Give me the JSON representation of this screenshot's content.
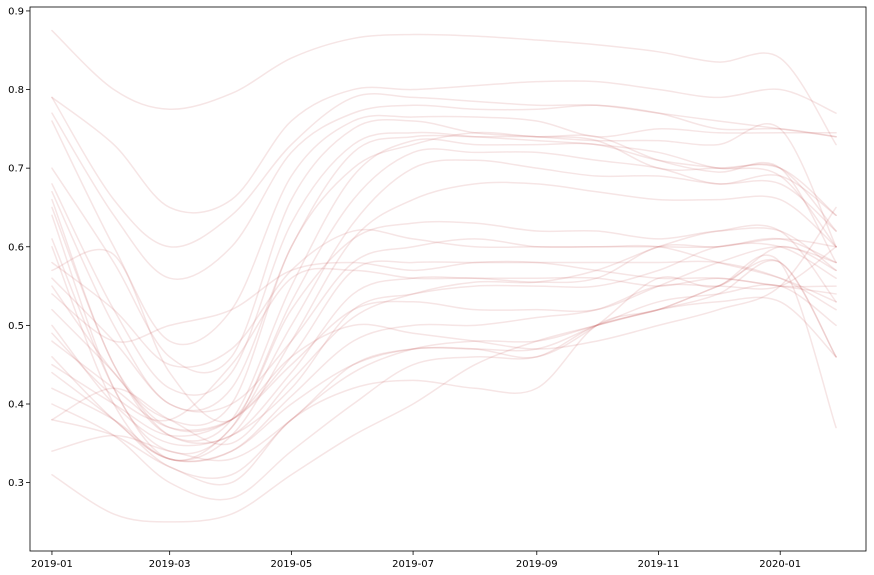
{
  "chart_data": {
    "type": "line",
    "title": "",
    "xlabel": "",
    "ylabel": "",
    "xlim": [
      "2018-12-21",
      "2020-02-13"
    ],
    "ylim": [
      0.213,
      0.905
    ],
    "grid": false,
    "legend": "none",
    "line_color": "#c44e52",
    "line_opacity": 0.15,
    "x_ticks": [
      "2019-01",
      "2019-03",
      "2019-05",
      "2019-07",
      "2019-09",
      "2019-11",
      "2020-01"
    ],
    "y_ticks": [
      "0.3",
      "0.4",
      "0.5",
      "0.6",
      "0.7",
      "0.8",
      "0.9"
    ],
    "x_dates": [
      "2019-01-01",
      "2019-02-01",
      "2019-03-01",
      "2019-04-01",
      "2019-05-01",
      "2019-06-01",
      "2019-07-01",
      "2019-08-01",
      "2019-09-01",
      "2019-10-01",
      "2019-11-01",
      "2019-12-01",
      "2020-01-01",
      "2020-01-29"
    ],
    "series": [
      {
        "values": [
          0.875,
          0.8,
          0.775,
          0.795,
          0.84,
          0.865,
          0.87,
          0.868,
          0.863,
          0.857,
          0.848,
          0.835,
          0.84,
          0.73
        ]
      },
      {
        "values": [
          0.79,
          0.73,
          0.65,
          0.66,
          0.76,
          0.8,
          0.8,
          0.805,
          0.81,
          0.81,
          0.8,
          0.79,
          0.8,
          0.77
        ]
      },
      {
        "values": [
          0.79,
          0.66,
          0.6,
          0.64,
          0.73,
          0.79,
          0.79,
          0.785,
          0.78,
          0.78,
          0.77,
          0.76,
          0.75,
          0.74
        ]
      },
      {
        "values": [
          0.77,
          0.64,
          0.56,
          0.6,
          0.72,
          0.77,
          0.78,
          0.775,
          0.775,
          0.78,
          0.77,
          0.75,
          0.75,
          0.74
        ]
      },
      {
        "values": [
          0.76,
          0.6,
          0.48,
          0.52,
          0.69,
          0.76,
          0.765,
          0.765,
          0.76,
          0.74,
          0.75,
          0.745,
          0.745,
          0.745
        ]
      },
      {
        "values": [
          0.7,
          0.58,
          0.46,
          0.46,
          0.66,
          0.75,
          0.76,
          0.745,
          0.74,
          0.735,
          0.735,
          0.73,
          0.75,
          0.6
        ]
      },
      {
        "values": [
          0.68,
          0.52,
          0.42,
          0.44,
          0.63,
          0.73,
          0.745,
          0.74,
          0.735,
          0.73,
          0.72,
          0.7,
          0.7,
          0.62
        ]
      },
      {
        "values": [
          0.67,
          0.5,
          0.4,
          0.42,
          0.6,
          0.72,
          0.74,
          0.74,
          0.74,
          0.735,
          0.7,
          0.7,
          0.7,
          0.64
        ]
      },
      {
        "values": [
          0.66,
          0.45,
          0.38,
          0.4,
          0.6,
          0.7,
          0.73,
          0.745,
          0.74,
          0.74,
          0.71,
          0.695,
          0.7,
          0.58
        ]
      },
      {
        "values": [
          0.65,
          0.45,
          0.36,
          0.38,
          0.55,
          0.69,
          0.735,
          0.73,
          0.73,
          0.73,
          0.71,
          0.7,
          0.69,
          0.6
        ]
      },
      {
        "values": [
          0.64,
          0.42,
          0.34,
          0.37,
          0.53,
          0.66,
          0.72,
          0.72,
          0.72,
          0.71,
          0.7,
          0.68,
          0.69,
          0.64
        ]
      },
      {
        "values": [
          0.61,
          0.42,
          0.33,
          0.37,
          0.5,
          0.63,
          0.7,
          0.71,
          0.7,
          0.69,
          0.69,
          0.68,
          0.68,
          0.62
        ]
      },
      {
        "values": [
          0.6,
          0.4,
          0.33,
          0.36,
          0.48,
          0.61,
          0.66,
          0.68,
          0.68,
          0.67,
          0.66,
          0.66,
          0.66,
          0.6
        ]
      },
      {
        "values": [
          0.58,
          0.52,
          0.45,
          0.47,
          0.57,
          0.62,
          0.61,
          0.6,
          0.6,
          0.6,
          0.6,
          0.6,
          0.61,
          0.58
        ]
      },
      {
        "values": [
          0.57,
          0.59,
          0.44,
          0.38,
          0.52,
          0.61,
          0.63,
          0.63,
          0.62,
          0.62,
          0.61,
          0.62,
          0.62,
          0.57
        ]
      },
      {
        "values": [
          0.56,
          0.48,
          0.4,
          0.4,
          0.48,
          0.58,
          0.6,
          0.61,
          0.6,
          0.6,
          0.6,
          0.58,
          0.56,
          0.53
        ]
      },
      {
        "values": [
          0.55,
          0.44,
          0.37,
          0.38,
          0.46,
          0.57,
          0.58,
          0.58,
          0.58,
          0.58,
          0.58,
          0.58,
          0.56,
          0.52
        ]
      },
      {
        "values": [
          0.54,
          0.48,
          0.5,
          0.52,
          0.57,
          0.58,
          0.57,
          0.58,
          0.58,
          0.57,
          0.56,
          0.56,
          0.55,
          0.54
        ]
      },
      {
        "values": [
          0.52,
          0.44,
          0.36,
          0.36,
          0.44,
          0.54,
          0.56,
          0.56,
          0.56,
          0.56,
          0.55,
          0.56,
          0.55,
          0.55
        ]
      },
      {
        "values": [
          0.5,
          0.4,
          0.35,
          0.36,
          0.42,
          0.52,
          0.54,
          0.55,
          0.55,
          0.55,
          0.57,
          0.6,
          0.6,
          0.56
        ]
      },
      {
        "values": [
          0.49,
          0.41,
          0.38,
          0.45,
          0.56,
          0.57,
          0.56,
          0.56,
          0.555,
          0.56,
          0.6,
          0.6,
          0.61,
          0.6
        ]
      },
      {
        "values": [
          0.48,
          0.42,
          0.37,
          0.38,
          0.45,
          0.52,
          0.53,
          0.52,
          0.52,
          0.52,
          0.55,
          0.58,
          0.6,
          0.58
        ]
      },
      {
        "values": [
          0.46,
          0.38,
          0.33,
          0.34,
          0.41,
          0.48,
          0.5,
          0.5,
          0.51,
          0.52,
          0.55,
          0.55,
          0.55,
          0.6
        ]
      },
      {
        "values": [
          0.45,
          0.4,
          0.36,
          0.38,
          0.46,
          0.5,
          0.49,
          0.48,
          0.47,
          0.48,
          0.5,
          0.52,
          0.55,
          0.65
        ]
      },
      {
        "values": [
          0.44,
          0.38,
          0.32,
          0.31,
          0.38,
          0.44,
          0.47,
          0.48,
          0.48,
          0.5,
          0.52,
          0.53,
          0.53,
          0.46
        ]
      },
      {
        "values": [
          0.42,
          0.38,
          0.33,
          0.34,
          0.4,
          0.45,
          0.47,
          0.47,
          0.47,
          0.5,
          0.53,
          0.54,
          0.55,
          0.5
        ]
      },
      {
        "values": [
          0.4,
          0.36,
          0.3,
          0.28,
          0.34,
          0.4,
          0.45,
          0.46,
          0.46,
          0.5,
          0.52,
          0.55,
          0.58,
          0.37
        ]
      },
      {
        "values": [
          0.38,
          0.42,
          0.38,
          0.35,
          0.43,
          0.51,
          0.54,
          0.555,
          0.555,
          0.57,
          0.6,
          0.62,
          0.62,
          0.53
        ]
      },
      {
        "values": [
          0.38,
          0.36,
          0.32,
          0.3,
          0.38,
          0.42,
          0.43,
          0.42,
          0.42,
          0.5,
          0.52,
          0.55,
          0.58,
          0.46
        ]
      },
      {
        "values": [
          0.34,
          0.36,
          0.34,
          0.33,
          0.38,
          0.45,
          0.47,
          0.47,
          0.46,
          0.5,
          0.56,
          0.55,
          0.6,
          0.57
        ]
      },
      {
        "values": [
          0.31,
          0.26,
          0.25,
          0.26,
          0.31,
          0.36,
          0.4,
          0.45,
          0.48,
          0.5,
          0.52,
          0.54,
          0.58,
          0.46
        ]
      }
    ]
  }
}
